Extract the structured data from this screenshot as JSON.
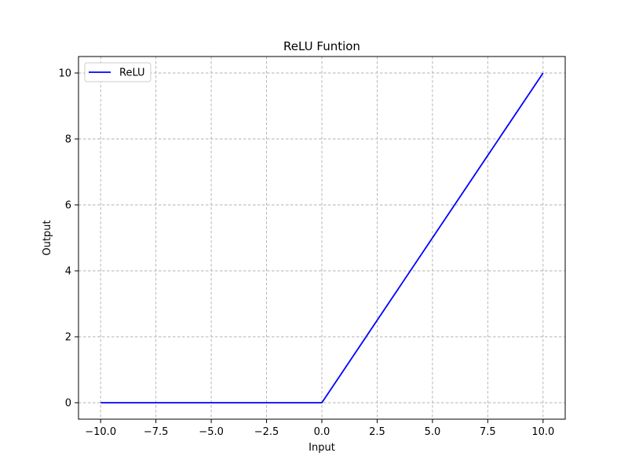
{
  "chart_data": {
    "type": "line",
    "title": "ReLU Funtion",
    "xlabel": "Input",
    "ylabel": "Output",
    "xlim": [
      -11,
      11
    ],
    "ylim": [
      -0.5,
      10.5
    ],
    "x_ticks": [
      -10.0,
      -7.5,
      -5.0,
      -2.5,
      0.0,
      2.5,
      5.0,
      7.5,
      10.0
    ],
    "x_tick_labels": [
      "−10.0",
      "−7.5",
      "−5.0",
      "−2.5",
      "0.0",
      "2.5",
      "5.0",
      "7.5",
      "10.0"
    ],
    "y_ticks": [
      0,
      2,
      4,
      6,
      8,
      10
    ],
    "y_tick_labels": [
      "0",
      "2",
      "4",
      "6",
      "8",
      "10"
    ],
    "grid": true,
    "legend_position": "top-left",
    "series": [
      {
        "name": "ReLU",
        "color": "#0000ff",
        "x": [
          -10,
          -5,
          0,
          0.2,
          2.5,
          5,
          7.5,
          10
        ],
        "y": [
          0,
          0,
          0,
          0.2,
          2.5,
          5,
          7.5,
          10
        ]
      }
    ]
  }
}
